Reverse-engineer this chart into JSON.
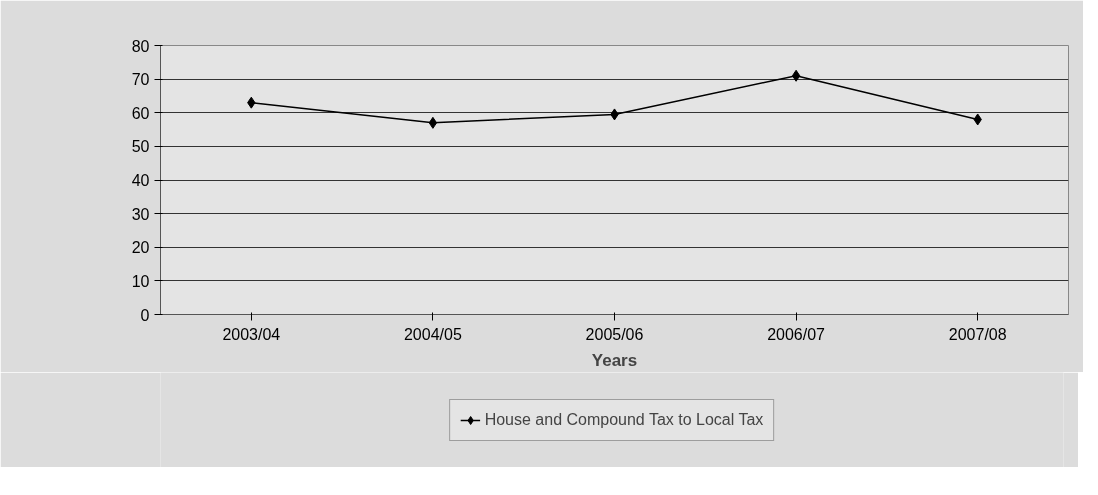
{
  "chart_data": {
    "type": "line",
    "xlabel": "Years",
    "categories": [
      "2003/04",
      "2004/05",
      "2005/06",
      "2006/07",
      "2007/08"
    ],
    "series": [
      {
        "name": "House and Compound Tax to Local Tax",
        "color": "#000000",
        "values": [
          63,
          57,
          59.5,
          71,
          58
        ]
      }
    ],
    "ylim": [
      0,
      80
    ],
    "yticks": [
      0,
      10,
      20,
      30,
      40,
      50,
      60,
      70,
      80
    ],
    "grid": "y",
    "legend": "bottom",
    "marker": "diamond",
    "line_style": "solid"
  }
}
